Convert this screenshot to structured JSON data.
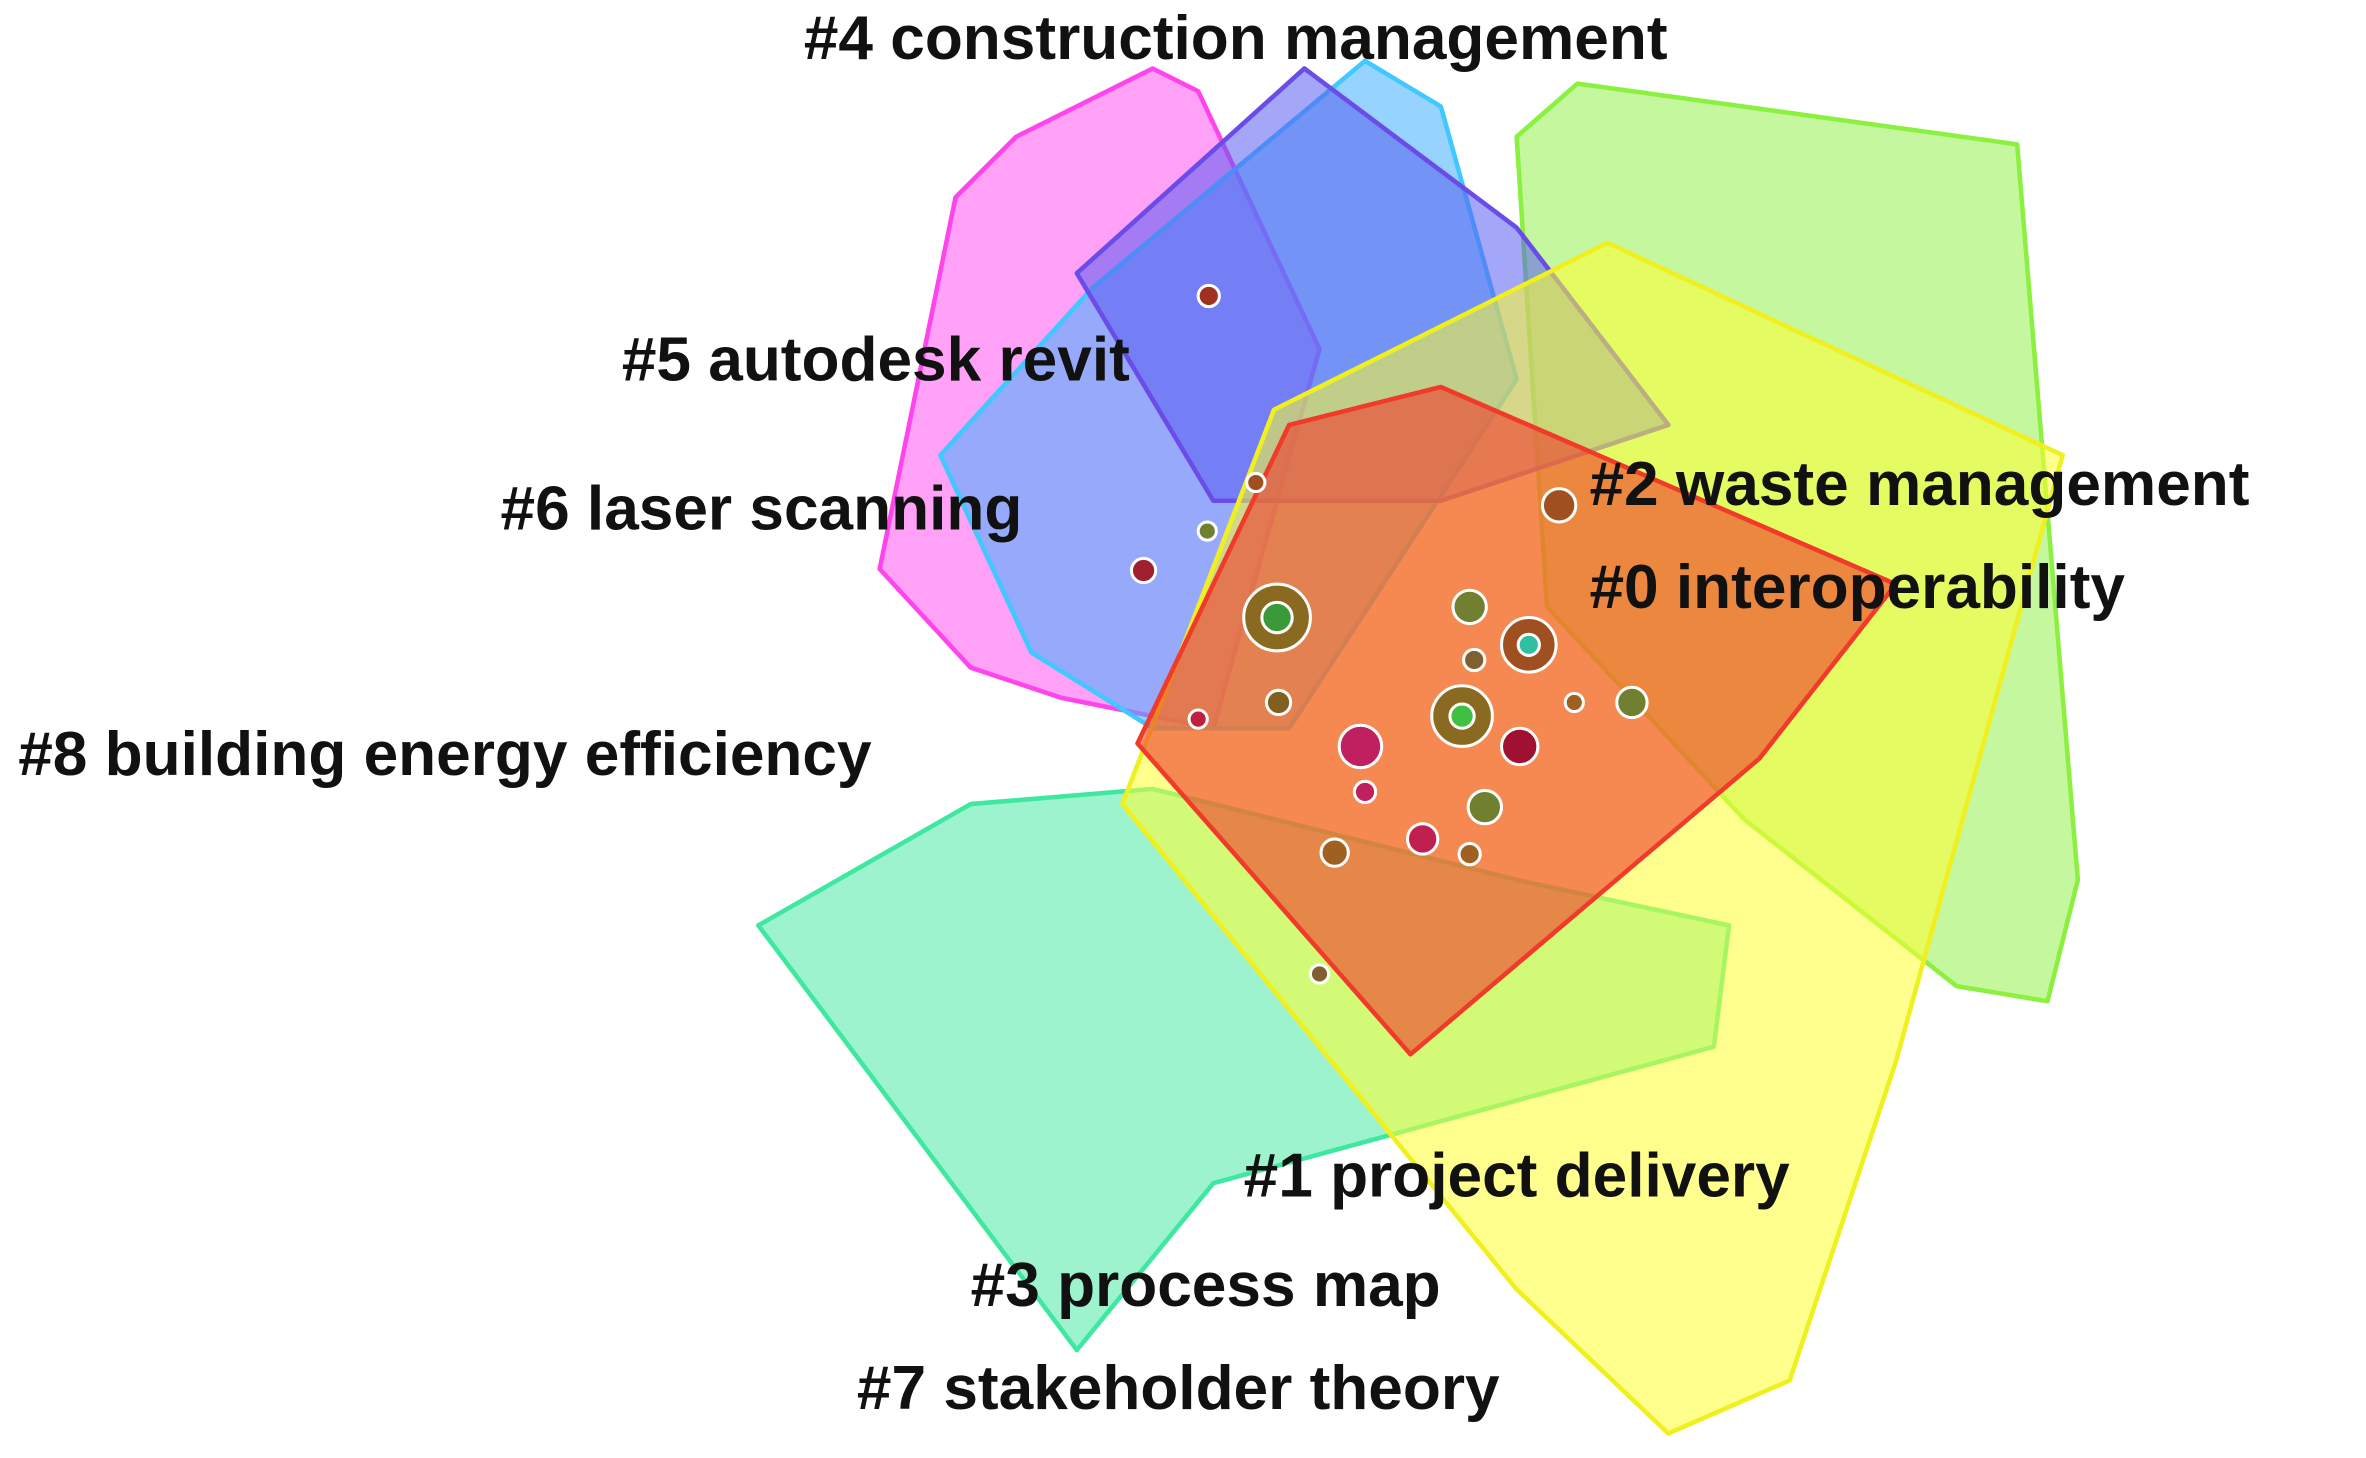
{
  "clusters": [
    {
      "label": "#4 construction management"
    },
    {
      "label": "#5 autodesk revit"
    },
    {
      "label": "#6 laser scanning"
    },
    {
      "label": "#2 waste management"
    },
    {
      "label": "#0 interoperability"
    },
    {
      "label": "#8 building energy efficiency"
    },
    {
      "label": "#1 project delivery"
    },
    {
      "label": "#3 process map"
    },
    {
      "label": "#7 stakeholder theory"
    }
  ]
}
